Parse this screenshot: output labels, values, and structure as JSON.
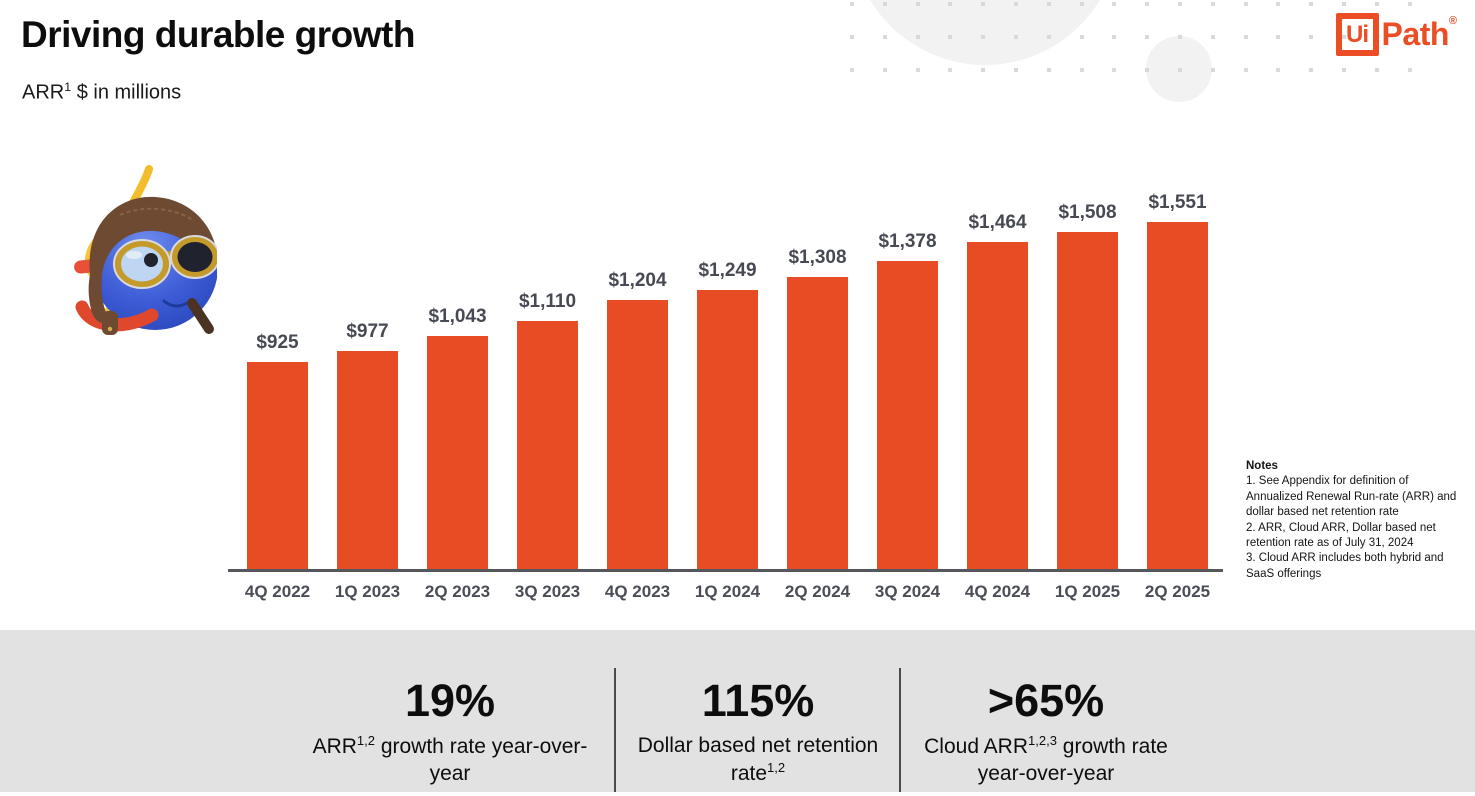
{
  "slide": {
    "title": "Driving durable growth",
    "subtitle": {
      "pre": "ARR",
      "sup": "1",
      "post": " $ in millions"
    }
  },
  "logo": {
    "box": "Ui",
    "wordmark": "Path",
    "registered": "®"
  },
  "chart_data": {
    "type": "bar",
    "title": "ARR $ in millions",
    "categories": [
      "4Q 2022",
      "1Q 2023",
      "2Q 2023",
      "3Q 2023",
      "4Q 2023",
      "1Q 2024",
      "2Q 2024",
      "3Q 2024",
      "4Q 2024",
      "1Q 2025",
      "2Q 2025"
    ],
    "values": [
      925,
      977,
      1043,
      1110,
      1204,
      1249,
      1308,
      1378,
      1464,
      1508,
      1551
    ],
    "value_labels": [
      "$925",
      "$977",
      "$1,043",
      "$1,110",
      "$1,204",
      "$1,249",
      "$1,308",
      "$1,378",
      "$1,464",
      "$1,508",
      "$1,551"
    ],
    "ylim": [
      0,
      1551
    ],
    "grid": false,
    "legend": "none",
    "bar_color": "#E74C24",
    "value_label_color": "#474A52",
    "axis_line_color": "#55575C"
  },
  "notes": {
    "heading": "Notes",
    "items": [
      "1. See Appendix for definition of Annualized Renewal Run-rate (ARR) and dollar based net retention rate",
      "2. ARR, Cloud ARR, Dollar based net retention rate as of July 31, 2024",
      "3. Cloud ARR includes both hybrid and SaaS offerings"
    ]
  },
  "stats": [
    {
      "value": "19%",
      "label_pre": "ARR",
      "label_sup": "1,2",
      "label_post": " growth rate year-over-year"
    },
    {
      "value": "115%",
      "label_pre": "Dollar based net retention rate",
      "label_sup": "1,2",
      "label_post": ""
    },
    {
      "value": ">65%",
      "label_pre": "Cloud ARR",
      "label_sup": "1,2,3",
      "label_post": " growth rate year-over-year"
    }
  ],
  "colors": {
    "brand_orange": "#EB4E24",
    "band_gray": "#E2E2E2",
    "dot_gray": "#D9D9D9"
  }
}
